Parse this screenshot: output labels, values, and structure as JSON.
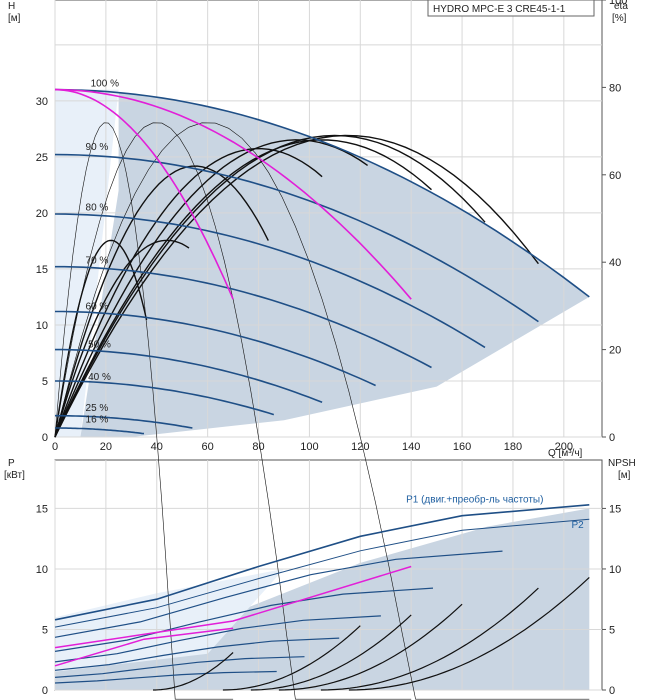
{
  "chart_data": [
    {
      "type": "line",
      "title": "HYDRO MPC-E 3 CRE45-1-1",
      "ylabel": "H",
      "yunit": "[м]",
      "y2label": "eta",
      "y2unit": "[%]",
      "xlabel": "Q [м³/ч]",
      "xlim": [
        0,
        215
      ],
      "ylim": [
        0,
        39
      ],
      "y2lim": [
        0,
        100
      ],
      "xticks": [
        0,
        20,
        40,
        60,
        80,
        100,
        120,
        140,
        160,
        180,
        200
      ],
      "yticks": [
        0,
        5,
        10,
        15,
        20,
        25,
        30
      ],
      "y2ticks": [
        0,
        20,
        40,
        60,
        80,
        100
      ],
      "grid": true,
      "speed_labels": [
        {
          "text": "100 %",
          "x": 14,
          "y": 31.3
        },
        {
          "text": "90 %",
          "x": 12,
          "y": 25.6
        },
        {
          "text": "80 %",
          "x": 12,
          "y": 20.2
        },
        {
          "text": "70 %",
          "x": 12,
          "y": 15.5
        },
        {
          "text": "60 %",
          "x": 12,
          "y": 11.4
        },
        {
          "text": "50 %",
          "x": 13,
          "y": 8.0
        },
        {
          "text": "40 %",
          "x": 13,
          "y": 5.1
        },
        {
          "text": "25 %",
          "x": 12,
          "y": 2.3
        },
        {
          "text": "16 %",
          "x": 12,
          "y": 1.3
        }
      ],
      "head_curves": [
        {
          "speed": "100 %",
          "h0": 31.0,
          "qmax": 210,
          "hend": 12.5
        },
        {
          "speed": "90 %",
          "h0": 25.2,
          "qmax": 190,
          "hend": 10.3
        },
        {
          "speed": "80 %",
          "h0": 19.9,
          "qmax": 169,
          "hend": 8.0
        },
        {
          "speed": "70 %",
          "h0": 15.2,
          "qmax": 148,
          "hend": 6.2
        },
        {
          "speed": "60 %",
          "h0": 11.2,
          "qmax": 126,
          "hend": 4.6
        },
        {
          "speed": "50 %",
          "h0": 7.8,
          "qmax": 105,
          "hend": 3.1
        },
        {
          "speed": "40 %",
          "h0": 5.0,
          "qmax": 86,
          "hend": 2.0
        },
        {
          "speed": "25 %",
          "h0": 1.9,
          "qmax": 54,
          "hend": 0.8
        },
        {
          "speed": "16 %",
          "h0": 0.8,
          "qmax": 35,
          "hend": 0.3
        }
      ],
      "magenta_curves": [
        {
          "h0": 31.0,
          "qstart": 0,
          "qend": 70,
          "hend": 12.3
        },
        {
          "h0": 31.0,
          "qstart": 0,
          "qend": 140,
          "hend": 12.3
        }
      ],
      "eta_curves": [
        {
          "peak_q": 20,
          "peak_eta": 72,
          "qend": 70
        },
        {
          "peak_q": 40,
          "peak_eta": 72,
          "qend": 140
        },
        {
          "peak_q": 60,
          "peak_eta": 72,
          "qend": 210
        },
        {
          "peak_q": 22,
          "peak_eta": 45,
          "qend": 36
        },
        {
          "peak_q": 44,
          "peak_eta": 45,
          "qend": 54
        },
        {
          "peak_q": 55,
          "peak_eta": 62,
          "qend": 86
        },
        {
          "peak_q": 80,
          "peak_eta": 66,
          "qend": 105
        },
        {
          "peak_q": 95,
          "peak_eta": 68,
          "qend": 126
        },
        {
          "peak_q": 105,
          "peak_eta": 68,
          "qend": 148
        },
        {
          "peak_q": 110,
          "peak_eta": 69,
          "qend": 169
        },
        {
          "peak_q": 115,
          "peak_eta": 69,
          "qend": 190
        }
      ]
    },
    {
      "type": "line",
      "ylabel": "P",
      "yunit": "[кВт]",
      "y2label": "NPSH",
      "y2unit": "[м]",
      "xlim": [
        0,
        215
      ],
      "ylim": [
        0,
        19
      ],
      "y2lim": [
        0,
        19
      ],
      "yticks": [
        0,
        5,
        10,
        15
      ],
      "y2ticks": [
        0,
        5,
        10,
        15
      ],
      "grid": true,
      "annotations": [
        {
          "text": "P1 (двиг.+преобр-ль частоты)",
          "x": 138,
          "y": 15.5
        },
        {
          "text": "P2",
          "x": 203,
          "y": 13.4
        }
      ],
      "power_series": [
        {
          "name": "P1 (двиг.+преобр-ль частоты)",
          "x": [
            0,
            40,
            80,
            120,
            160,
            210
          ],
          "y": [
            5.8,
            7.5,
            10.2,
            12.7,
            14.4,
            15.3
          ]
        },
        {
          "name": "P2",
          "x": [
            0,
            40,
            80,
            120,
            160,
            210
          ],
          "y": [
            5.2,
            6.8,
            9.2,
            11.5,
            13.2,
            14.1
          ]
        }
      ],
      "npsh_series": [
        {
          "x": [
            0,
            40,
            80,
            120,
            160,
            210
          ],
          "y": [
            0.2,
            0.8,
            2.0,
            3.8,
            6.0,
            9.3
          ]
        }
      ]
    }
  ]
}
